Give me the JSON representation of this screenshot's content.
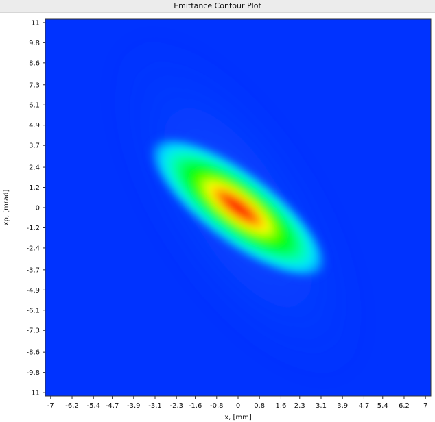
{
  "window": {
    "title": "Emittance Contour Plot"
  },
  "chart_data": {
    "type": "heatmap",
    "title": "Emittance Contour Plot",
    "xlabel": "x, [mm]",
    "ylabel": "xp, [mrad]",
    "xlim": [
      -7.2,
      7.2
    ],
    "ylim": [
      -11.2,
      11.2
    ],
    "x_ticks": [
      "-7",
      "-6.2",
      "-5.4",
      "-4.7",
      "-3.9",
      "-3.1",
      "-2.3",
      "-1.6",
      "-0.8",
      "0",
      "0.8",
      "1.6",
      "2.3",
      "3.1",
      "3.9",
      "4.7",
      "5.4",
      "6.2",
      "7"
    ],
    "x_tick_values": [
      -7,
      -6.2,
      -5.4,
      -4.7,
      -3.9,
      -3.1,
      -2.3,
      -1.6,
      -0.8,
      0,
      0.8,
      1.6,
      2.3,
      3.1,
      3.9,
      4.7,
      5.4,
      6.2,
      7
    ],
    "y_ticks": [
      "11",
      "9.8",
      "8.6",
      "7.3",
      "6.1",
      "4.9",
      "3.7",
      "2.4",
      "1.2",
      "0",
      "-1.2",
      "-2.4",
      "-3.7",
      "-4.9",
      "-6.1",
      "-7.3",
      "-8.6",
      "-9.8",
      "-11"
    ],
    "y_tick_values": [
      11,
      9.8,
      8.6,
      7.3,
      6.1,
      4.9,
      3.7,
      2.4,
      1.2,
      0,
      -1.2,
      -2.4,
      -3.7,
      -4.9,
      -6.1,
      -7.3,
      -8.6,
      -9.8,
      -11
    ],
    "colormap": [
      "#0033ff",
      "#00ffff",
      "#00ff00",
      "#ffff00",
      "#ff0000"
    ],
    "background_color": "#0033ff",
    "distribution": {
      "center": [
        0,
        0
      ],
      "orientation": "tilted, xp decreases as x increases",
      "core_extent_x": [
        -3.1,
        3.9
      ],
      "core_extent_y": [
        -4.9,
        4.9
      ],
      "halo_extent_x": [
        -7,
        7
      ],
      "halo_extent_y": [
        -11,
        11
      ],
      "peak_value": 1.0
    }
  }
}
